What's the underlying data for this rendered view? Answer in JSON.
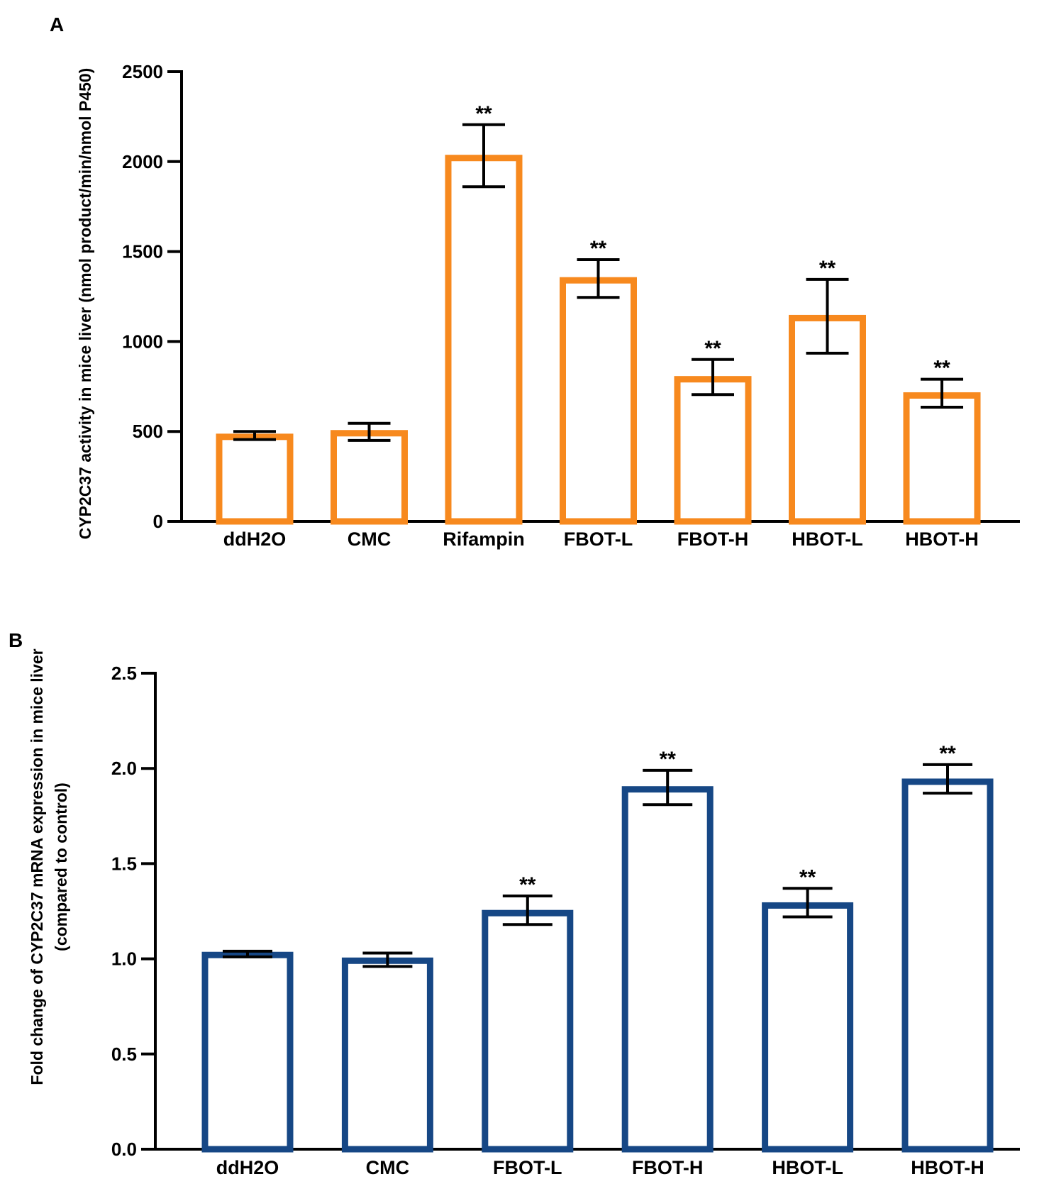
{
  "chart_data": [
    {
      "panel": "A",
      "type": "bar",
      "categories": [
        "ddH2O",
        "CMC",
        "Rifampin",
        "FBOT-L",
        "FBOT-H",
        "HBOT-L",
        "HBOT-H"
      ],
      "values": [
        470,
        490,
        2020,
        1340,
        790,
        1130,
        700
      ],
      "error_low": [
        455,
        450,
        1860,
        1245,
        705,
        935,
        635
      ],
      "error_high": [
        500,
        545,
        2205,
        1455,
        900,
        1345,
        790
      ],
      "significance": [
        "",
        "",
        "**",
        "**",
        "**",
        "**",
        "**"
      ],
      "ylabel": "CYP2C37 activity in mice liver (nmol product/min/nmol P450)",
      "ylim": [
        0,
        2500
      ],
      "yticks": [
        "0",
        "500",
        "1000",
        "1500",
        "2000",
        "2500"
      ],
      "color": "#F7891E",
      "grid": false
    },
    {
      "panel": "B",
      "type": "bar",
      "categories": [
        "ddH2O",
        "CMC",
        "FBOT-L",
        "FBOT-H",
        "HBOT-L",
        "HBOT-H"
      ],
      "values": [
        1.02,
        0.99,
        1.24,
        1.89,
        1.28,
        1.93
      ],
      "error_low": [
        1.01,
        0.96,
        1.18,
        1.81,
        1.22,
        1.87
      ],
      "error_high": [
        1.04,
        1.03,
        1.33,
        1.99,
        1.37,
        2.02
      ],
      "significance": [
        "",
        "",
        "**",
        "**",
        "**",
        "**"
      ],
      "ylabel": "Fold change of CYP2C37 mRNA expression in mice liver",
      "ylabel2": "(compared to control)",
      "ylim": [
        0,
        2.5
      ],
      "yticks": [
        "0.0",
        "0.5",
        "1.0",
        "1.5",
        "2.0",
        "2.5"
      ],
      "color": "#164785",
      "grid": false
    }
  ]
}
